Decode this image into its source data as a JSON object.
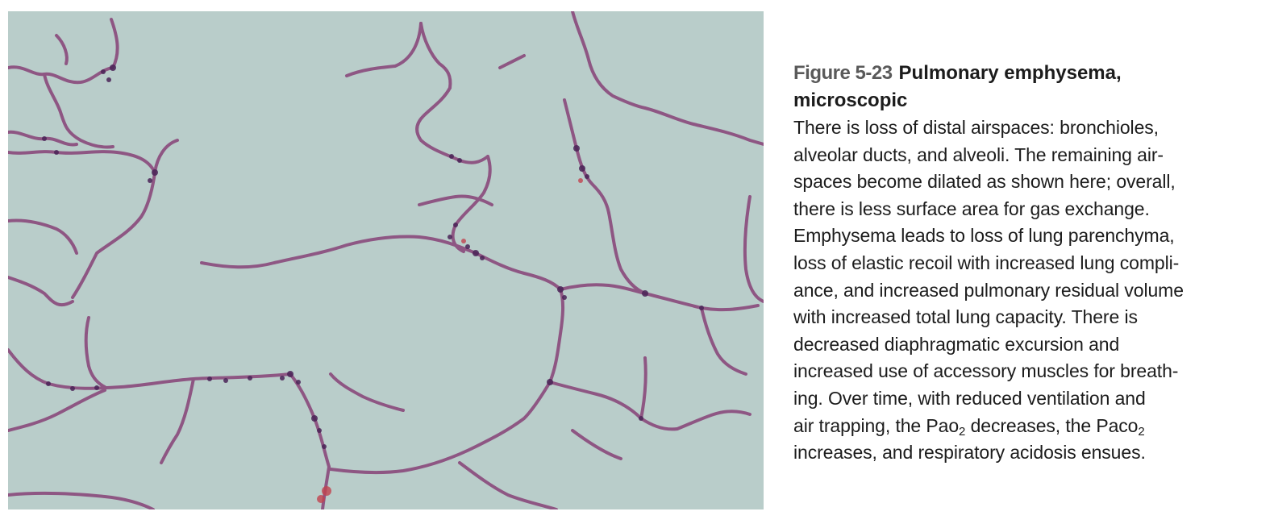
{
  "figure": {
    "label": "Figure 5-23",
    "title_line1": "Pulmonary emphysema,",
    "title_line2": "microscopic",
    "body_lines": [
      "There is loss of distal airspaces: bronchioles,",
      "alveolar ducts, and alveoli. The remaining air-",
      "spaces become dilated as shown here; overall,",
      "there is less surface area for gas exchange.",
      "Emphysema leads to loss of lung parenchyma,",
      "loss of elastic recoil with increased lung compli-",
      "ance, and increased pulmonary residual volume",
      "with increased total lung capacity. There is",
      "decreased diaphragmatic excursion and",
      "increased use of accessory muscles for breath-",
      "ing. Over time, with reduced ventilation and"
    ],
    "line12_a": "air trapping, the Pao",
    "line12_sub1": "2",
    "line12_b": " decreases, the Paco",
    "line12_sub2": "2",
    "line13": "increases, and respiratory acidosis ensues."
  },
  "image": {
    "subject": "lung-tissue-micrograph",
    "background_color": "#b9cdca",
    "septa_color": "#7a3f6e",
    "cell_color": "#4a2357",
    "rbc_color": "#c2434f"
  }
}
